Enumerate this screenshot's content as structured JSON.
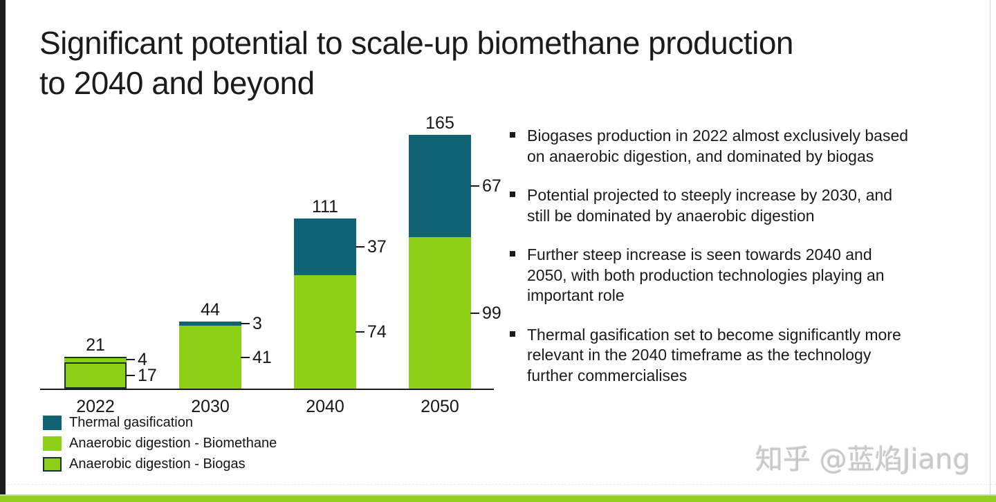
{
  "slide": {
    "title": "Significant potential to scale-up biomethane production to 2040 and beyond",
    "title_lines": [
      "Significant potential to scale-up biomethane production",
      "to 2040 and beyond"
    ],
    "bullets": [
      "Biogases production in 2022 almost exclusively based on anaerobic digestion, and dominated by biogas",
      "Potential projected to steeply increase by 2030, and still be dominated by anaerobic digestion",
      "Further steep increase is seen towards 2040 and 2050, with both production technologies playing an important role",
      "Thermal gasification set to become significantly more relevant in the 2040 timeframe as the technology further commercialises"
    ],
    "watermark": "知乎 @蓝焰Jiang"
  },
  "chart_data": {
    "type": "bar",
    "stacked": true,
    "title": "",
    "xlabel": "",
    "ylabel": "",
    "ylim": [
      0,
      175
    ],
    "y_axis_visible": false,
    "grid": false,
    "data_labels": "segment values shown with ticks right of bars, totals above bars",
    "categories": [
      "2022",
      "2030",
      "2040",
      "2050"
    ],
    "series": [
      {
        "name": "Anaerobic digestion - Biogas",
        "style": "biogas",
        "values": [
          17,
          0,
          0,
          0
        ]
      },
      {
        "name": "Anaerobic digestion - Biomethane",
        "style": "biomethane",
        "values": [
          4,
          41,
          74,
          99
        ]
      },
      {
        "name": "Thermal gasification",
        "style": "thermal",
        "values": [
          0,
          3,
          37,
          67
        ]
      }
    ],
    "totals": [
      21,
      44,
      111,
      165
    ],
    "legend_position": "bottom-left",
    "legend": [
      {
        "label": "Thermal gasification",
        "style": "thermal"
      },
      {
        "label": "Anaerobic digestion - Biomethane",
        "style": "biomethane"
      },
      {
        "label": "Anaerobic digestion - Biogas",
        "style": "biogas"
      }
    ],
    "colors": {
      "thermal": "#0f6375",
      "anaerobic_green": "#8ed015",
      "biogas_border": "#12332a",
      "axis": "#1a1a1a",
      "footer_bar": "#90cf1e"
    }
  }
}
